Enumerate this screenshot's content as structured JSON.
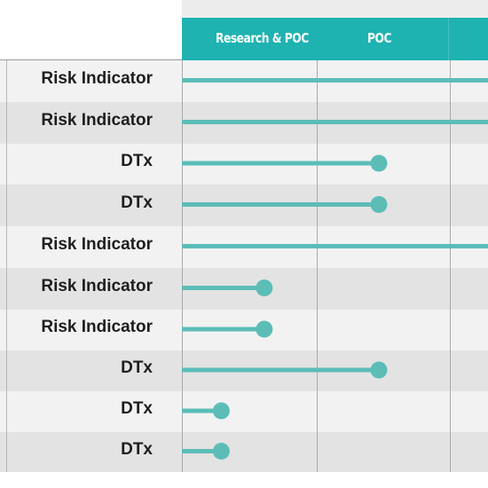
{
  "stages": [
    {
      "label": "Research &  POC"
    },
    {
      "label": "POC"
    }
  ],
  "rows": [
    {
      "label": "Risk Indicator",
      "progress": 1.0
    },
    {
      "label": "Risk Indicator",
      "progress": 1.0
    },
    {
      "label": "DTx",
      "progress": 0.55
    },
    {
      "label": "DTx",
      "progress": 0.55
    },
    {
      "label": "Risk Indicator",
      "progress": 1.0
    },
    {
      "label": "Risk Indicator",
      "progress": 0.23
    },
    {
      "label": "Risk Indicator",
      "progress": 0.23
    },
    {
      "label": "DTx",
      "progress": 0.55
    },
    {
      "label": "DTx",
      "progress": 0.11
    },
    {
      "label": "DTx",
      "progress": 0.11
    }
  ],
  "colors": {
    "accent": "#1eb2b1",
    "bar": "#5cbdb7",
    "row_light": "#f2f2f2",
    "row_dark": "#e3e3e3",
    "label_text": "#1e1e1e",
    "grid": "#aaaaaa"
  },
  "chart_data": {
    "type": "bar",
    "categories": [
      "Risk Indicator",
      "Risk Indicator",
      "DTx",
      "DTx",
      "Risk Indicator",
      "Risk Indicator",
      "Risk Indicator",
      "DTx",
      "DTx",
      "DTx"
    ],
    "stages": [
      "Research &  POC",
      "POC"
    ],
    "values": [
      1.0,
      1.0,
      0.55,
      0.55,
      1.0,
      0.23,
      0.23,
      0.55,
      0.11,
      0.11
    ],
    "ylim": [
      0,
      1
    ],
    "orientation": "horizontal",
    "grid": true
  }
}
